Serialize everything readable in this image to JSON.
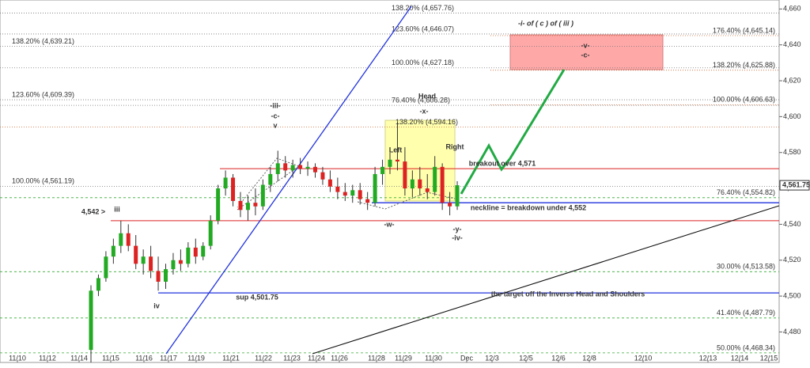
{
  "chart_data": {
    "type": "candlestick",
    "ylim": [
      4463,
      4665
    ],
    "yticks": [
      {
        "value": 4480,
        "label": "4,480"
      },
      {
        "value": 4500,
        "label": "4,500"
      },
      {
        "value": 4520,
        "label": "4,520"
      },
      {
        "value": 4540,
        "label": "4,540"
      },
      {
        "value": 4560,
        "label": "4,560"
      },
      {
        "value": 4580,
        "label": "4,580"
      },
      {
        "value": 4600,
        "label": "4,600"
      },
      {
        "value": 4620,
        "label": "4,620"
      },
      {
        "value": 4640,
        "label": "4,640"
      },
      {
        "value": 4660,
        "label": "4,660"
      }
    ],
    "x_labels": [
      "11/10",
      "11/12",
      "11/14",
      "11/15",
      "11/16",
      "11/17",
      "11/19",
      "11/21",
      "11/22",
      "11/23",
      "11/24",
      "11/26",
      "11/28",
      "11/29",
      "11/30",
      "Dec",
      "12/3",
      "12/5",
      "12/6",
      "12/8",
      "12/10",
      "12/13",
      "12/14",
      "12/15"
    ],
    "up_color": "#22aa22",
    "down_color": "#dd2222",
    "open": [
      4470,
      4503,
      4510,
      4522,
      4528,
      4535,
      4528,
      4518,
      4522,
      4514,
      4508,
      4515,
      4520,
      4518,
      4527,
      4522,
      4528,
      4542,
      4560,
      4566,
      4553,
      4548,
      4552,
      4550,
      4562,
      4568,
      4574,
      4570,
      4573,
      4571,
      4572,
      4569,
      4565,
      4561,
      4558,
      4556,
      4559,
      4554,
      4552,
      4568,
      4572,
      4576,
      4575,
      4560,
      4565,
      4560,
      4558,
      4572,
      4552,
      4550
    ],
    "high": [
      4506,
      4512,
      4525,
      4532,
      4542,
      4540,
      4534,
      4526,
      4528,
      4522,
      4518,
      4524,
      4526,
      4530,
      4532,
      4530,
      4545,
      4562,
      4570,
      4568,
      4558,
      4556,
      4560,
      4565,
      4572,
      4581,
      4578,
      4576,
      4577,
      4575,
      4574,
      4572,
      4570,
      4566,
      4563,
      4562,
      4563,
      4558,
      4572,
      4576,
      4580,
      4597,
      4583,
      4570,
      4572,
      4568,
      4578,
      4574,
      4558,
      4564
    ],
    "low": [
      4463,
      4500,
      4508,
      4518,
      4524,
      4525,
      4515,
      4512,
      4510,
      4503,
      4504,
      4512,
      4514,
      4516,
      4518,
      4520,
      4526,
      4540,
      4556,
      4550,
      4544,
      4542,
      4545,
      4548,
      4558,
      4564,
      4566,
      4566,
      4568,
      4567,
      4566,
      4562,
      4558,
      4554,
      4553,
      4552,
      4551,
      4548,
      4550,
      4562,
      4568,
      4570,
      4556,
      4555,
      4556,
      4554,
      4556,
      4548,
      4545,
      4548
    ],
    "close": [
      4503,
      4510,
      4522,
      4528,
      4535,
      4528,
      4518,
      4522,
      4514,
      4508,
      4515,
      4520,
      4518,
      4527,
      4522,
      4528,
      4542,
      4560,
      4566,
      4553,
      4548,
      4552,
      4550,
      4562,
      4568,
      4574,
      4570,
      4573,
      4571,
      4572,
      4569,
      4565,
      4561,
      4558,
      4556,
      4559,
      4554,
      4552,
      4568,
      4572,
      4576,
      4575,
      4560,
      4565,
      4560,
      4558,
      4572,
      4552,
      4550,
      4561.75
    ],
    "last_price": {
      "value": 4561.75,
      "label": "4,561.75"
    },
    "levels": [
      {
        "value": 4657.76,
        "label": "138.20% (4,657.76)",
        "color": "#777777"
      },
      {
        "value": 4646.07,
        "label": "123.60% (4,646.07)",
        "color": "#777777"
      },
      {
        "value": 4627.18,
        "label": "100.00% (4,627.18)",
        "color": "#777777"
      },
      {
        "value": 4606.28,
        "label": "76.40% (4,606.28)",
        "color": "#777777"
      },
      {
        "value": 4639.21,
        "label": "138.20% (4,639.21)",
        "color": "#777777"
      },
      {
        "value": 4609.39,
        "label": "123.60% (4,609.39)",
        "color": "#777777"
      },
      {
        "value": 4561.19,
        "label": "100.00% (4,561.19)",
        "color": "#777777"
      },
      {
        "value": 4554.82,
        "label": "76.40% (4,554.82)",
        "color": "#33aa33"
      },
      {
        "value": 4513.58,
        "label": "30.00% (4,513.58)",
        "color": "#33aa33"
      },
      {
        "value": 4487.79,
        "label": "41.40% (4,487.79)",
        "color": "#33aa33"
      },
      {
        "value": 4468.34,
        "label": "50.00% (4,468.34)",
        "color": "#33aa33"
      },
      {
        "value": 4645.14,
        "label": "176.40% (4,645.14)",
        "color": "#cc6633"
      },
      {
        "value": 4625.88,
        "label": "138.20% (4,625.88)",
        "color": "#cc6633"
      },
      {
        "value": 4606.63,
        "label": "100.00% (4,606.63)",
        "color": "#cc6633"
      },
      {
        "value": 4594.16,
        "label": "138.20% (4,594.16)",
        "color": "#cc6633"
      }
    ],
    "breakout": 4571,
    "neckline": 4552,
    "support": 4501.75,
    "resistance": 4542,
    "annotations": {
      "wave": "-i- of ( c ) of ( iii )",
      "v": "-v-",
      "c": "-c-",
      "head": "Head",
      "x": "-x-",
      "left": "Left",
      "right": "Right",
      "breakout": "breakout over 4,571",
      "neckline": "neckline = breakdown under 4,552",
      "target": "the target off the Inverse Head and Shoulders",
      "sup": "sup 4,501.75",
      "r": "4,542 >",
      "iii": "iii",
      "iv": "iv",
      "iii2": "-iii-",
      "c2": "-c-",
      "v2": "v",
      "w": "-w-",
      "y": "-y-",
      "iv2": "-iv-"
    }
  }
}
